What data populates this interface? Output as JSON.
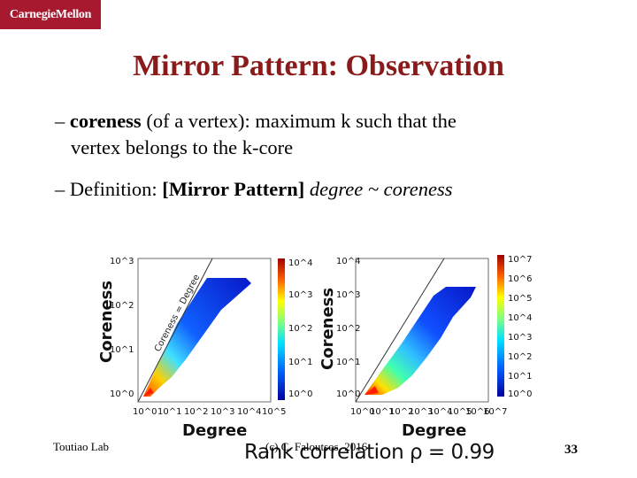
{
  "header": {
    "logo_text": "CarnegieMellon",
    "logo_color": "#a6192e"
  },
  "slide": {
    "title": "Mirror Pattern: Observation",
    "bullet1": {
      "dash": "–",
      "term": "coreness",
      "line1_rest": "(of a vertex): maximum k such that the",
      "line2": "vertex belongs to the k-core"
    },
    "bullet2": {
      "dash": "–",
      "lead": "Definition:",
      "name": "[Mirror Pattern]",
      "formula": "degree ~ coreness"
    }
  },
  "figure": {
    "left_plot": {
      "ylabel": "Coreness",
      "xlabel": "Degree",
      "diag_label": "Coreness = Degree",
      "y_ticks": [
        "10^3",
        "10^2",
        "10^1",
        "10^0"
      ],
      "x_ticks": [
        "10^0",
        "10^1",
        "10^2",
        "10^3",
        "10^4",
        "10^5"
      ],
      "cbar_ticks": [
        "10^4",
        "10^3",
        "10^2",
        "10^1",
        "10^0"
      ]
    },
    "right_plot": {
      "ylabel": "Coreness",
      "xlabel": "Degree",
      "y_ticks": [
        "10^4",
        "10^3",
        "10^2",
        "10^1",
        "10^0"
      ],
      "x_ticks": [
        "10^0",
        "10^1",
        "10^2",
        "10^3",
        "10^4",
        "10^5",
        "10^6",
        "10^7"
      ],
      "cbar_ticks": [
        "10^7",
        "10^6",
        "10^5",
        "10^4",
        "10^3",
        "10^2",
        "10^1",
        "10^0"
      ]
    },
    "rank_correlation": "Rank correlation ρ = 0.99"
  },
  "footer": {
    "left": "Toutiao Lab",
    "center": "(c) C. Faloutsos, 2016",
    "page": "33"
  }
}
